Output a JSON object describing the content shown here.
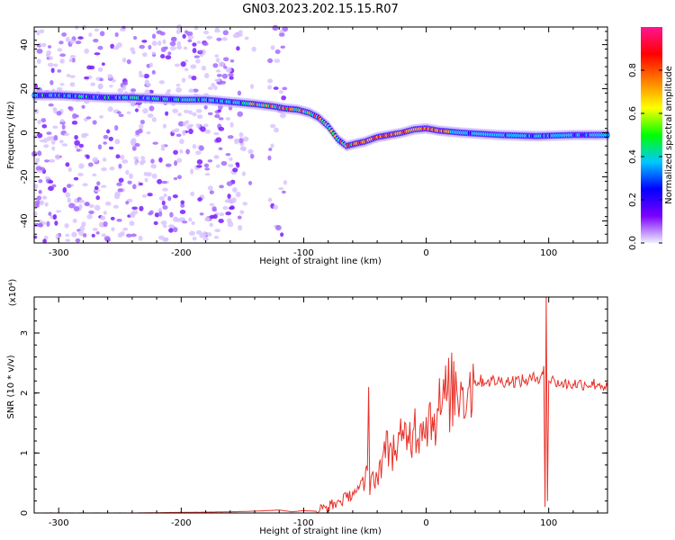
{
  "title": "GN03.2023.202.15.15.R07",
  "colorbar": {
    "label": "Normalized spectral amplitude",
    "ticks": [
      "0.0",
      "0.2",
      "0.4",
      "0.6",
      "0.8"
    ],
    "tick_values": [
      0.0,
      0.2,
      0.4,
      0.6,
      0.8
    ],
    "range": [
      0,
      1
    ],
    "colors": [
      "#f0f0ff",
      "#7b00ff",
      "#0000ff",
      "#00c8ff",
      "#00ff00",
      "#ffff00",
      "#ff7f00",
      "#ff0000",
      "#ff1493"
    ]
  },
  "chart_data": [
    {
      "type": "heatmap",
      "title": "GN03.2023.202.15.15.R07",
      "xlabel": "Height of straight line (km)",
      "ylabel": "Frequency (Hz)",
      "xlim": [
        -320,
        148
      ],
      "ylim": [
        -50,
        48
      ],
      "xticks": [
        -300,
        -200,
        -100,
        0,
        100
      ],
      "xtick_labels": [
        "-300",
        "-200",
        "-100",
        "0",
        "100"
      ],
      "yticks": [
        -40,
        -20,
        0,
        20,
        40
      ],
      "ytick_labels": [
        "-40",
        "-20",
        "0",
        "20",
        "40"
      ],
      "series": [
        {
          "name": "",
          "x": [
            -320,
            -300,
            -280,
            -260,
            -240,
            -220,
            -200,
            -180,
            -160,
            -140,
            -125,
            -115,
            -105,
            -95,
            -88,
            -80,
            -72,
            -65,
            -58,
            -50,
            -40,
            -30,
            -20,
            -10,
            0,
            10,
            30,
            60,
            90,
            120,
            148
          ],
          "y": [
            17,
            17,
            16.5,
            16,
            16,
            15.5,
            15,
            15,
            14,
            13,
            12,
            11,
            10.5,
            9,
            7,
            3,
            -3,
            -6,
            -5,
            -4,
            -2,
            -1,
            0,
            1.5,
            2,
            1,
            0,
            -1,
            -1.5,
            -1,
            -1
          ]
        }
      ]
    },
    {
      "type": "line",
      "title": "",
      "xlabel": "Height of straight line (km)",
      "ylabel": "SNR (10 * v/v)",
      "yunit_label": "(x10⁴)",
      "xlim": [
        -320,
        148
      ],
      "ylim": [
        0,
        3.6
      ],
      "xticks": [
        -300,
        -200,
        -100,
        0,
        100
      ],
      "xtick_labels": [
        "-300",
        "-200",
        "-100",
        "0",
        "100"
      ],
      "yticks": [
        0,
        1,
        2,
        3
      ],
      "ytick_labels": [
        "0",
        "1",
        "2",
        "3"
      ],
      "series": [
        {
          "name": "",
          "color": "#e8322a",
          "x": [
            -320,
            -280,
            -240,
            -200,
            -160,
            -140,
            -120,
            -110,
            -100,
            -90,
            -80,
            -70,
            -65,
            -60,
            -55,
            -50,
            -48,
            -47,
            -46,
            -45,
            -40,
            -35,
            -30,
            -25,
            -20,
            -15,
            -10,
            -5,
            0,
            5,
            10,
            15,
            20,
            25,
            30,
            35,
            40,
            50,
            60,
            70,
            80,
            90,
            94,
            96,
            97,
            98,
            99,
            100,
            105,
            110,
            120,
            130,
            140,
            148
          ],
          "y": [
            0.0,
            0.0,
            0.0,
            0.01,
            0.02,
            0.03,
            0.05,
            0.02,
            0.04,
            0.03,
            0.1,
            0.2,
            0.25,
            0.35,
            0.4,
            0.5,
            0.7,
            2.1,
            0.3,
            0.6,
            0.6,
            1.0,
            1.1,
            1.05,
            1.2,
            1.3,
            1.4,
            1.45,
            1.6,
            1.6,
            1.7,
            1.9,
            2.0,
            2.05,
            2.1,
            2.1,
            2.2,
            2.2,
            2.2,
            2.2,
            2.2,
            2.25,
            2.3,
            2.45,
            0.1,
            3.6,
            0.2,
            2.2,
            2.2,
            2.15,
            2.15,
            2.15,
            2.15,
            2.1
          ]
        }
      ]
    }
  ]
}
